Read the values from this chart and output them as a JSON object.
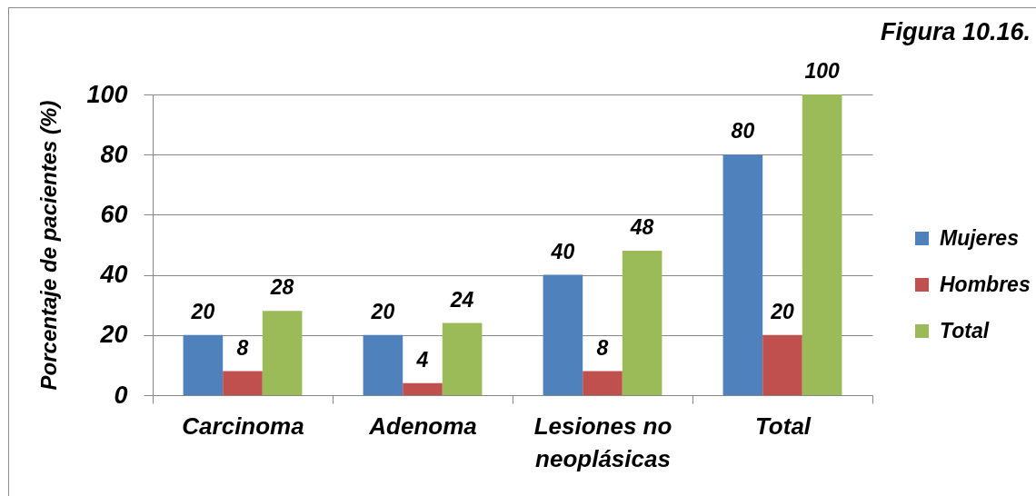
{
  "chart_data": {
    "type": "bar",
    "title": "Figura 10.16.",
    "ylabel": "Porcentaje de pacientes (%)",
    "categories": [
      "Carcinoma",
      "Adenoma",
      "Lesiones no neoplásicas",
      "Total"
    ],
    "series": [
      {
        "name": "Mujeres",
        "color": "#4f81bd",
        "values": [
          20,
          20,
          40,
          80
        ]
      },
      {
        "name": "Hombres",
        "color": "#c0504d",
        "values": [
          8,
          4,
          8,
          20
        ]
      },
      {
        "name": "Total",
        "color": "#9bbb59",
        "values": [
          28,
          24,
          48,
          100
        ]
      }
    ],
    "ylim": [
      0,
      100
    ],
    "yticks": [
      0,
      20,
      40,
      60,
      80,
      100
    ],
    "grid": "y",
    "legend": "right",
    "data_labels": true
  }
}
